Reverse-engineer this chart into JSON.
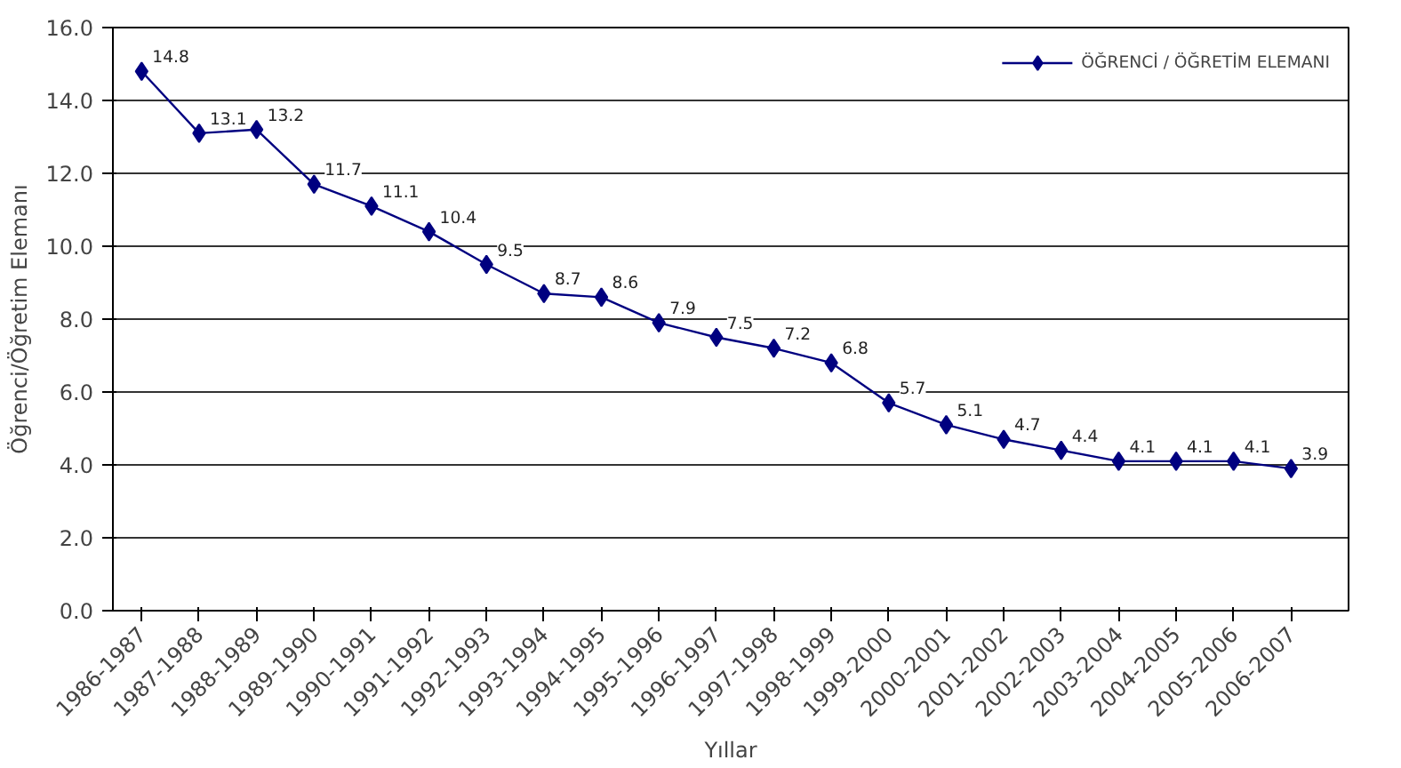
{
  "chart_data": {
    "type": "line",
    "xlabel": "Yıllar",
    "ylabel": "Öğrenci/Öğretim Elemanı",
    "categories": [
      "1986-1987",
      "1987-1988",
      "1988-1989",
      "1989-1990",
      "1990-1991",
      "1991-1992",
      "1992-1993",
      "1993-1994",
      "1994-1995",
      "1995-1996",
      "1996-1997",
      "1997-1998",
      "1998-1999",
      "1999-2000",
      "2000-2001",
      "2001-2002",
      "2002-2003",
      "2003-2004",
      "2004-2005",
      "2005-2006",
      "2006-2007"
    ],
    "series": [
      {
        "name": "ÖĞRENCİ / ÖĞRETİM ELEMANI",
        "color": "#000080",
        "values": [
          14.8,
          13.1,
          13.2,
          11.7,
          11.1,
          10.4,
          9.5,
          8.7,
          8.6,
          7.9,
          7.5,
          7.2,
          6.8,
          5.7,
          5.1,
          4.7,
          4.4,
          4.1,
          4.1,
          4.1,
          3.9
        ]
      }
    ],
    "ylim": [
      0,
      16
    ],
    "yticks": [
      {
        "value": 0,
        "label": "0.0"
      },
      {
        "value": 2,
        "label": "2.0"
      },
      {
        "value": 4,
        "label": "4.0"
      },
      {
        "value": 6,
        "label": "6.0"
      },
      {
        "value": 8,
        "label": "8.0"
      },
      {
        "value": 10,
        "label": "10.0"
      },
      {
        "value": 12,
        "label": "12.0"
      },
      {
        "value": 14,
        "label": "14.0"
      },
      {
        "value": 16,
        "label": "16.0"
      }
    ],
    "grid": "y",
    "legend": "top right",
    "marker": "diamond",
    "line_style": "solid",
    "data_labels": true
  }
}
